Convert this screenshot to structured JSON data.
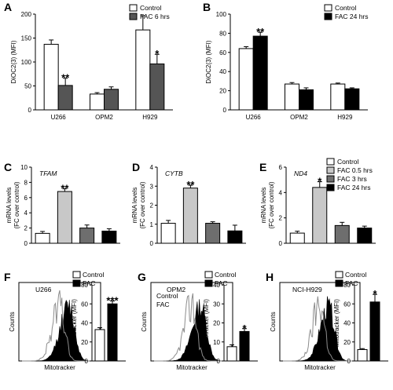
{
  "colors": {
    "control": "#ffffff",
    "fac6": "#555555",
    "fac24": "#000000",
    "fac05": "#c8c8c8",
    "fac3": "#6e6e6e",
    "hist_control": "#8c8c8c",
    "hist_fac": "#000000"
  },
  "chart_data": [
    {
      "id": "A",
      "type": "bar",
      "panel_label": "A",
      "ylabel": "DiOC2(3) (MFI)",
      "ylim": [
        0,
        200
      ],
      "yticks": [
        0,
        50,
        100,
        150,
        200
      ],
      "categories": [
        "U266",
        "OPM2",
        "H929"
      ],
      "series": [
        {
          "name": "Control",
          "color": "#ffffff",
          "values": [
            137,
            33,
            167
          ],
          "errors": [
            9,
            3,
            30
          ]
        },
        {
          "name": "FAC 6 hrs",
          "color": "#555555",
          "values": [
            51,
            43,
            96
          ],
          "errors": [
            15,
            5,
            20
          ]
        }
      ],
      "annotations": [
        {
          "category": 0,
          "series": 1,
          "text": "**"
        },
        {
          "category": 2,
          "series": 1,
          "text": "*"
        }
      ],
      "legend": "top-right"
    },
    {
      "id": "B",
      "type": "bar",
      "panel_label": "B",
      "ylabel": "DiOC2(3) (MFI)",
      "ylim": [
        0,
        100
      ],
      "yticks": [
        0,
        20,
        40,
        60,
        80,
        100
      ],
      "categories": [
        "U266",
        "OPM2",
        "H929"
      ],
      "series": [
        {
          "name": "Control",
          "color": "#ffffff",
          "values": [
            64,
            27,
            27
          ],
          "errors": [
            2,
            1.5,
            1
          ]
        },
        {
          "name": "FAC 24 hrs",
          "color": "#000000",
          "values": [
            77,
            21,
            22
          ],
          "errors": [
            4,
            2,
            1
          ]
        }
      ],
      "annotations": [
        {
          "category": 0,
          "series": 1,
          "text": "**"
        }
      ],
      "legend": "top-right"
    },
    {
      "id": "C",
      "type": "bar",
      "panel_label": "C",
      "gene": "TFAM",
      "ylabel": [
        "mRNA levels",
        "(FC over control)"
      ],
      "ylim": [
        0,
        10
      ],
      "yticks": [
        0,
        2,
        4,
        6,
        8,
        10
      ],
      "categories": [
        "Control",
        "FAC 0.5 hrs",
        "FAC 3 hrs",
        "FAC 24 hrs"
      ],
      "colors": [
        "#ffffff",
        "#c8c8c8",
        "#6e6e6e",
        "#000000"
      ],
      "values": [
        1.3,
        6.8,
        2.0,
        1.6
      ],
      "errors": [
        0.25,
        0.35,
        0.4,
        0.3
      ],
      "annotations": [
        {
          "index": 1,
          "text": "**"
        }
      ]
    },
    {
      "id": "D",
      "type": "bar",
      "panel_label": "D",
      "gene": "CYTB",
      "ylabel": [
        "mRNA levels",
        "(FC over control)"
      ],
      "ylim": [
        0,
        4
      ],
      "yticks": [
        0,
        1,
        2,
        3,
        4
      ],
      "categories": [
        "Control",
        "FAC 0.5 hrs",
        "FAC 3 hrs",
        "FAC 24 hrs"
      ],
      "colors": [
        "#ffffff",
        "#c8c8c8",
        "#6e6e6e",
        "#000000"
      ],
      "values": [
        1.05,
        2.9,
        1.05,
        0.65
      ],
      "errors": [
        0.15,
        0.15,
        0.08,
        0.3
      ],
      "annotations": [
        {
          "index": 1,
          "text": "**"
        }
      ]
    },
    {
      "id": "E",
      "type": "bar",
      "panel_label": "E",
      "gene": "ND4",
      "ylabel": [
        "mRNA levels",
        "(FC over control)"
      ],
      "ylim": [
        0,
        6
      ],
      "yticks": [
        0,
        2,
        4,
        6
      ],
      "categories": [
        "Control",
        "FAC 0.5 hrs",
        "FAC 3 hrs",
        "FAC 24 hrs"
      ],
      "colors": [
        "#ffffff",
        "#c8c8c8",
        "#6e6e6e",
        "#000000"
      ],
      "values": [
        0.8,
        4.4,
        1.4,
        1.2
      ],
      "errors": [
        0.15,
        0.45,
        0.25,
        0.15
      ],
      "annotations": [
        {
          "index": 1,
          "text": "*"
        }
      ],
      "legend": [
        "Control",
        "FAC 0.5 hrs",
        "FAC 3 hrs",
        "FAC 24 hrs"
      ]
    },
    {
      "id": "F",
      "type": "histogram+bar",
      "panel_label": "F",
      "title": "U266",
      "hist_xlabel": "Mitotracker",
      "hist_ylabel": "Counts",
      "ylabel": "Mitotracker (MFI)",
      "ylim": [
        0,
        80
      ],
      "yticks": [
        0,
        20,
        40,
        60,
        80
      ],
      "series": [
        {
          "name": "Control",
          "color": "#ffffff",
          "value": 33,
          "error": 2
        },
        {
          "name": "FAC",
          "color": "#000000",
          "value": 60,
          "error": 3
        }
      ],
      "annotation": "***",
      "legend": [
        "Control",
        "FAC"
      ]
    },
    {
      "id": "G",
      "type": "histogram+bar",
      "panel_label": "G",
      "title": "OPM2",
      "hist_labels": [
        "Control",
        "FAC"
      ],
      "hist_xlabel": "Mitotracker",
      "hist_ylabel": "Counts",
      "ylabel": "Mitotracker (MFI)",
      "ylim": [
        0,
        40
      ],
      "yticks": [
        0,
        10,
        20,
        30,
        40
      ],
      "series": [
        {
          "name": "Control",
          "color": "#ffffff",
          "value": 7.5,
          "error": 1
        },
        {
          "name": "FAC",
          "color": "#000000",
          "value": 15.5,
          "error": 1.5
        }
      ],
      "annotation": "*",
      "legend": [
        "Control",
        "FAC"
      ]
    },
    {
      "id": "H",
      "type": "histogram+bar",
      "panel_label": "H",
      "title": "NCI-H929",
      "hist_xlabel": "Mitotracker",
      "hist_ylabel": "Counts",
      "ylabel": "Mitotracker (MFI)",
      "ylim": [
        0,
        80
      ],
      "yticks": [
        0,
        20,
        40,
        60,
        80
      ],
      "series": [
        {
          "name": "Control",
          "color": "#ffffff",
          "value": 12,
          "error": 1
        },
        {
          "name": "FAC",
          "color": "#000000",
          "value": 62,
          "error": 8
        }
      ],
      "annotation": "*",
      "legend": [
        "Control",
        "FAC"
      ]
    }
  ]
}
